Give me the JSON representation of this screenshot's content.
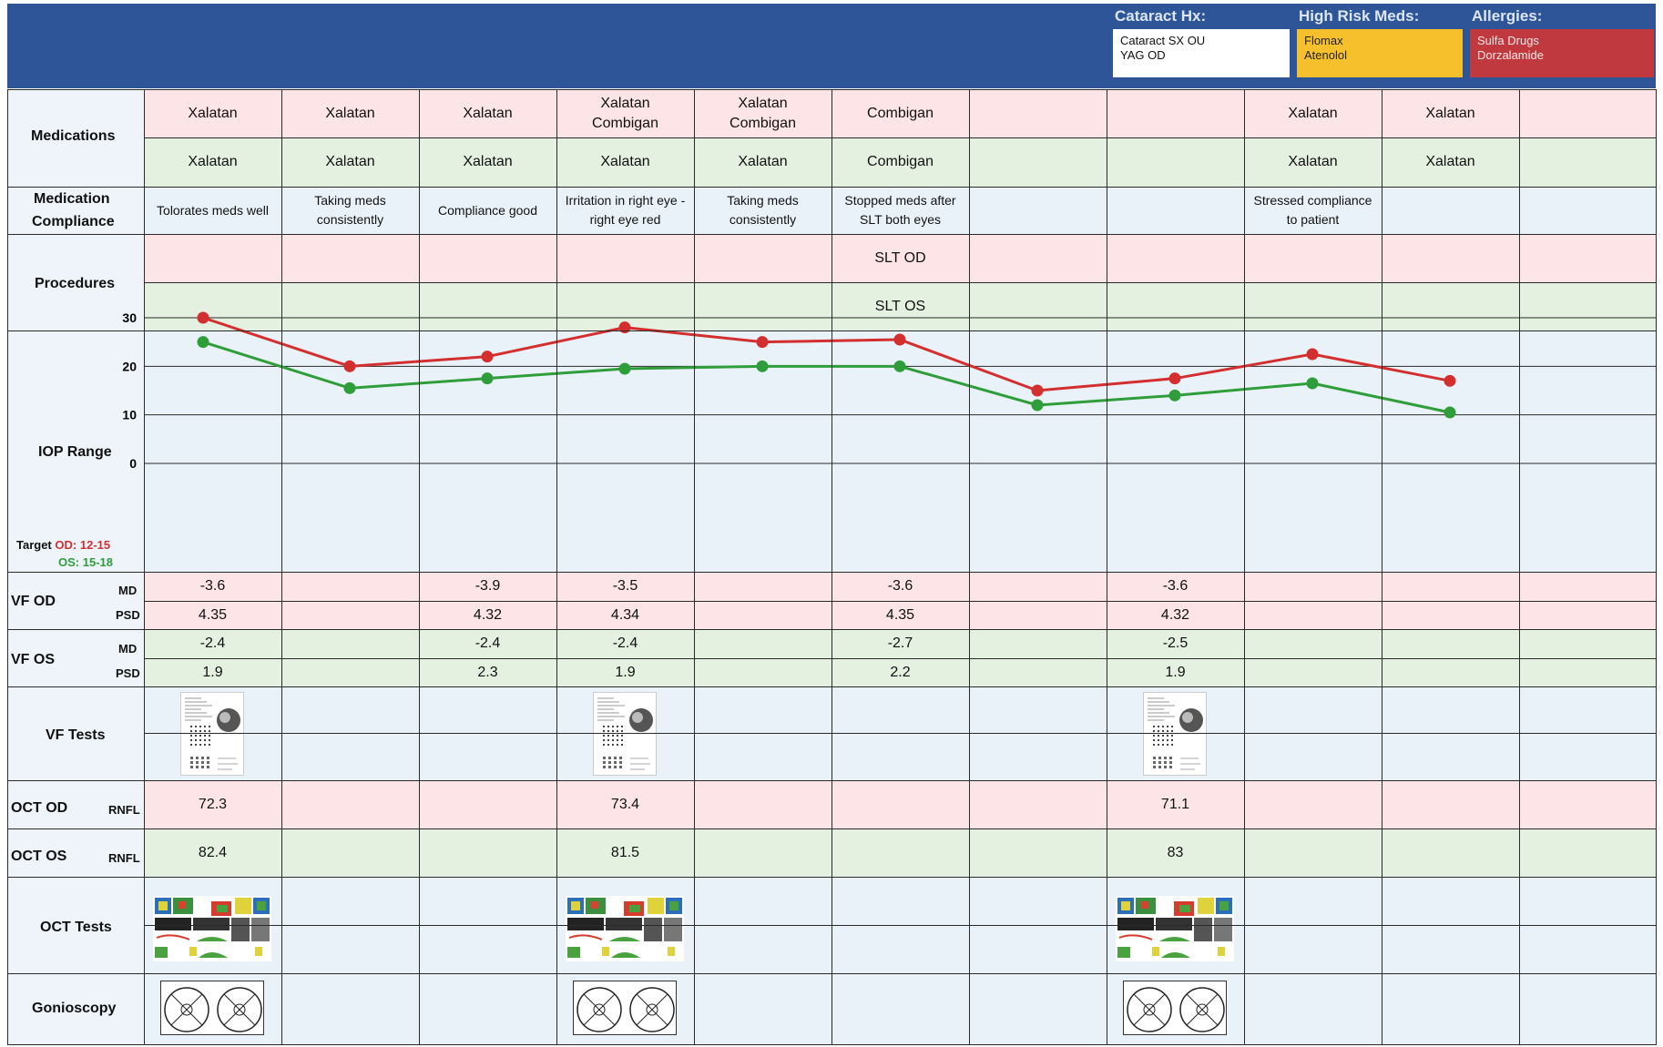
{
  "header": {
    "cataract": {
      "title": "Cataract Hx:",
      "lines": [
        "Cataract SX OU",
        "YAG OD"
      ]
    },
    "high_risk": {
      "title": "High Risk Meds:",
      "lines": [
        "Flomax",
        "Atenolol"
      ]
    },
    "allergies": {
      "title": "Allergies:",
      "lines": [
        "Sulfa Drugs",
        "Dorzalamide"
      ]
    },
    "colors": {
      "banner": "#2e5597",
      "high_risk": "#f6c02d",
      "allergies": "#c0393f"
    }
  },
  "row_labels": {
    "medications": "Medications",
    "compliance": [
      "Medication",
      "Compliance"
    ],
    "procedures": "Procedures",
    "iop": "IOP Range",
    "vf_od": "VF OD",
    "vf_os": "VF OS",
    "md": "MD",
    "psd": "PSD",
    "vf_tests": "VF Tests",
    "oct_od": "OCT OD",
    "oct_os": "OCT OS",
    "rnfl": "RNFL",
    "oct_tests": "OCT Tests",
    "gonioscopy": "Gonioscopy"
  },
  "target": {
    "label": "Target",
    "od_label": "OD:",
    "od_range": "12-15",
    "os_label": "OS:",
    "os_range": "15-18",
    "od_color": "#d42f2f",
    "os_color": "#2f9e3a"
  },
  "visits": [
    {
      "med_od": [
        "Xalatan"
      ],
      "med_os": [
        "Xalatan"
      ],
      "compliance": [
        "Tolorates meds well"
      ],
      "proc_od": "",
      "proc_os": "",
      "vf_od_md": "-3.6",
      "vf_od_psd": "4.35",
      "vf_os_md": "-2.4",
      "vf_os_psd": "1.9",
      "oct_od": "72.3",
      "oct_os": "82.4",
      "vf_test": true,
      "oct_test": true,
      "gonio": true
    },
    {
      "med_od": [
        "Xalatan"
      ],
      "med_os": [
        "Xalatan"
      ],
      "compliance": [
        "Taking meds",
        "consistently"
      ],
      "proc_od": "",
      "proc_os": "",
      "vf_od_md": "",
      "vf_od_psd": "",
      "vf_os_md": "",
      "vf_os_psd": "",
      "oct_od": "",
      "oct_os": "",
      "vf_test": false,
      "oct_test": false,
      "gonio": false
    },
    {
      "med_od": [
        "Xalatan"
      ],
      "med_os": [
        "Xalatan"
      ],
      "compliance": [
        "Compliance good"
      ],
      "proc_od": "",
      "proc_os": "",
      "vf_od_md": "-3.9",
      "vf_od_psd": "4.32",
      "vf_os_md": "-2.4",
      "vf_os_psd": "2.3",
      "oct_od": "",
      "oct_os": "",
      "vf_test": false,
      "oct_test": false,
      "gonio": false
    },
    {
      "med_od": [
        "Xalatan",
        "Combigan"
      ],
      "med_os": [
        "Xalatan"
      ],
      "compliance": [
        "Irritation in right eye -",
        "right eye red"
      ],
      "proc_od": "",
      "proc_os": "",
      "vf_od_md": "-3.5",
      "vf_od_psd": "4.34",
      "vf_os_md": "-2.4",
      "vf_os_psd": "1.9",
      "oct_od": "73.4",
      "oct_os": "81.5",
      "vf_test": true,
      "oct_test": true,
      "gonio": true
    },
    {
      "med_od": [
        "Xalatan",
        "Combigan"
      ],
      "med_os": [
        "Xalatan"
      ],
      "compliance": [
        "Taking meds",
        "consistently"
      ],
      "proc_od": "",
      "proc_os": "",
      "vf_od_md": "",
      "vf_od_psd": "",
      "vf_os_md": "",
      "vf_os_psd": "",
      "oct_od": "",
      "oct_os": "",
      "vf_test": false,
      "oct_test": false,
      "gonio": false
    },
    {
      "med_od": [
        "Combigan"
      ],
      "med_os": [
        "Combigan"
      ],
      "compliance": [
        "Stopped meds after",
        "SLT both eyes"
      ],
      "proc_od": "SLT OD",
      "proc_os": "SLT OS",
      "vf_od_md": "-3.6",
      "vf_od_psd": "4.35",
      "vf_os_md": "-2.7",
      "vf_os_psd": "2.2",
      "oct_od": "",
      "oct_os": "",
      "vf_test": false,
      "oct_test": false,
      "gonio": false
    },
    {
      "med_od": [],
      "med_os": [],
      "compliance": [],
      "proc_od": "",
      "proc_os": "",
      "vf_od_md": "",
      "vf_od_psd": "",
      "vf_os_md": "",
      "vf_os_psd": "",
      "oct_od": "",
      "oct_os": "",
      "vf_test": false,
      "oct_test": false,
      "gonio": false
    },
    {
      "med_od": [],
      "med_os": [],
      "compliance": [],
      "proc_od": "",
      "proc_os": "",
      "vf_od_md": "-3.6",
      "vf_od_psd": "4.32",
      "vf_os_md": "-2.5",
      "vf_os_psd": "1.9",
      "oct_od": "71.1",
      "oct_os": "83",
      "vf_test": true,
      "oct_test": true,
      "gonio": true
    },
    {
      "med_od": [
        "Xalatan"
      ],
      "med_os": [
        "Xalatan"
      ],
      "compliance": [
        "Stressed compliance",
        "to patient"
      ],
      "proc_od": "",
      "proc_os": "",
      "vf_od_md": "",
      "vf_od_psd": "",
      "vf_os_md": "",
      "vf_os_psd": "",
      "oct_od": "",
      "oct_os": "",
      "vf_test": false,
      "oct_test": false,
      "gonio": false
    },
    {
      "med_od": [
        "Xalatan"
      ],
      "med_os": [
        "Xalatan"
      ],
      "compliance": [],
      "proc_od": "",
      "proc_os": "",
      "vf_od_md": "",
      "vf_od_psd": "",
      "vf_os_md": "",
      "vf_os_psd": "",
      "oct_od": "",
      "oct_os": "",
      "vf_test": false,
      "oct_test": false,
      "gonio": false
    },
    {
      "med_od": [],
      "med_os": [],
      "compliance": [],
      "proc_od": "",
      "proc_os": "",
      "vf_od_md": "",
      "vf_od_psd": "",
      "vf_os_md": "",
      "vf_os_psd": "",
      "oct_od": "",
      "oct_os": "",
      "vf_test": false,
      "oct_test": false,
      "gonio": false
    }
  ],
  "chart_data": {
    "type": "line",
    "title": "",
    "xlabel": "",
    "ylabel": "IOP Range",
    "ylim": [
      0,
      30
    ],
    "yticks": [
      0,
      10,
      20,
      30
    ],
    "grid": true,
    "x": [
      1,
      2,
      3,
      4,
      5,
      6,
      7,
      8,
      9,
      10
    ],
    "series": [
      {
        "color": "#d42f2f",
        "values": [
          30,
          20,
          22,
          28,
          25,
          25.5,
          15,
          17.5,
          22.5,
          17
        ]
      },
      {
        "color": "#2f9e3a",
        "values": [
          25,
          15.5,
          17.5,
          19.5,
          20,
          20,
          12,
          14,
          16.5,
          10.5
        ]
      }
    ]
  }
}
